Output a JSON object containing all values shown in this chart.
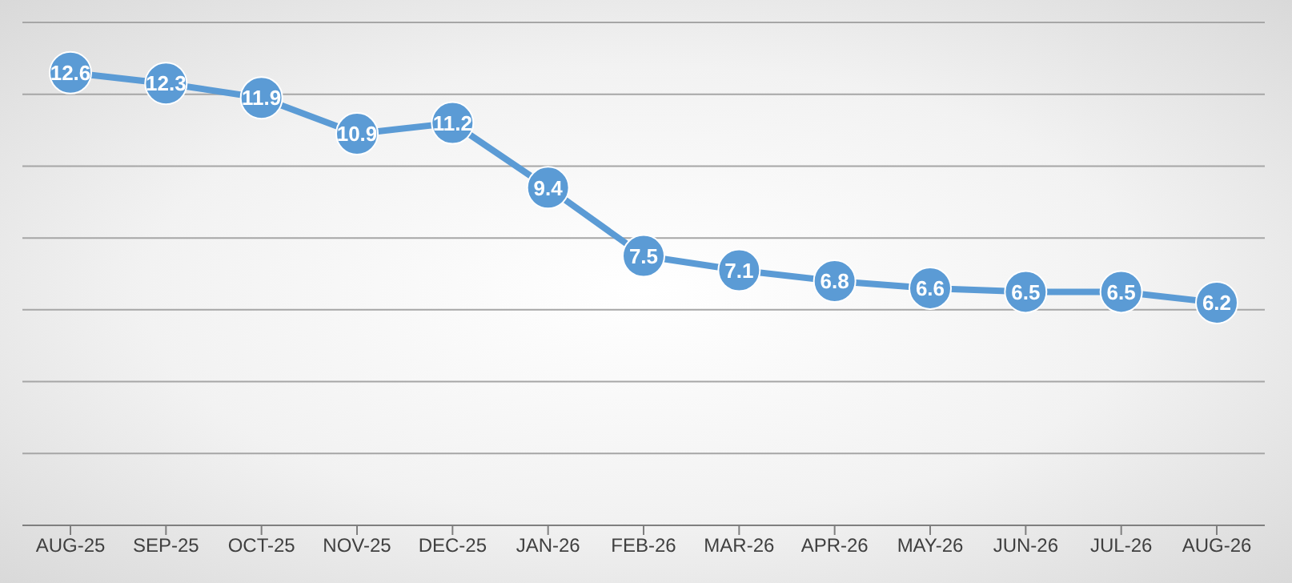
{
  "chart_data": {
    "type": "line",
    "categories": [
      "AUG-25",
      "SEP-25",
      "OCT-25",
      "NOV-25",
      "DEC-25",
      "JAN-26",
      "FEB-26",
      "MAR-26",
      "APR-26",
      "MAY-26",
      "JUN-26",
      "JUL-26",
      "AUG-26"
    ],
    "series": [
      {
        "color": "#5b9bd5",
        "values": [
          12.6,
          12.3,
          11.9,
          10.9,
          11.2,
          9.4,
          7.5,
          7.1,
          6.8,
          6.6,
          6.5,
          6.5,
          6.2
        ]
      }
    ],
    "ylim": [
      0,
      14
    ],
    "grid": "y",
    "tick_labels": "x",
    "data_labels": true,
    "marker": "circle",
    "line_style": "solid"
  }
}
